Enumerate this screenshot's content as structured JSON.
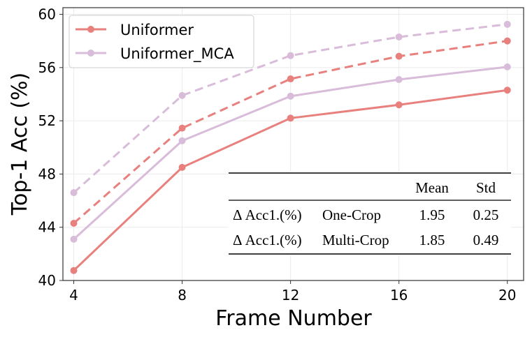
{
  "chart_data": {
    "type": "line",
    "title": "",
    "xlabel": "Frame Number",
    "ylabel": "Top-1 Acc (%)",
    "x": [
      4,
      8,
      12,
      16,
      20
    ],
    "x_ticks": [
      "4",
      "8",
      "12",
      "16",
      "20"
    ],
    "y_ticks": [
      "40",
      "44",
      "48",
      "52",
      "56",
      "60"
    ],
    "xlim": [
      3.6,
      20.6
    ],
    "ylim": [
      40,
      60.5
    ],
    "grid": true,
    "legend_position": "top-left",
    "legend": [
      {
        "name": "Uniformer",
        "color": "#e8807e"
      },
      {
        "name": "Uniformer_MCA",
        "color": "#d8bcd9"
      }
    ],
    "series": [
      {
        "name": "Uniformer (One-Crop)",
        "legend_group": "Uniformer",
        "style": "solid",
        "color": "#e8807e",
        "values": [
          40.75,
          48.5,
          52.2,
          53.2,
          54.3
        ]
      },
      {
        "name": "Uniformer (Multi-Crop)",
        "legend_group": "Uniformer",
        "style": "dashed",
        "color": "#e8807e",
        "values": [
          44.3,
          51.45,
          55.15,
          56.85,
          58.0
        ]
      },
      {
        "name": "Uniformer_MCA (One-Crop)",
        "legend_group": "Uniformer_MCA",
        "style": "solid",
        "color": "#d8bcd9",
        "values": [
          43.1,
          50.5,
          53.85,
          55.1,
          56.05
        ]
      },
      {
        "name": "Uniformer_MCA (Multi-Crop)",
        "legend_group": "Uniformer_MCA",
        "style": "dashed",
        "color": "#d8bcd9",
        "values": [
          46.6,
          53.9,
          56.9,
          58.3,
          59.25
        ]
      }
    ],
    "table": {
      "headers": [
        "",
        "",
        "Mean",
        "Std"
      ],
      "rows": [
        [
          "Δ Acc1.(%)",
          "One-Crop",
          "1.95",
          "0.25"
        ],
        [
          "Δ Acc1.(%)",
          "Multi-Crop",
          "1.85",
          "0.49"
        ]
      ]
    }
  }
}
